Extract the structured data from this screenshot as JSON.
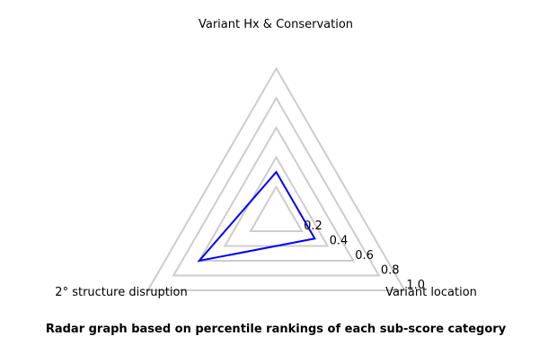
{
  "chart_data": {
    "type": "radar",
    "title": "Radar graph based on percentile rankings of each sub-score category",
    "axes": [
      "Variant Hx & Conservation",
      "Variant location",
      "2° structure disruption"
    ],
    "series": [
      {
        "values": [
          0.3,
          0.3,
          0.6
        ]
      }
    ],
    "rlim": [
      0,
      1.0
    ],
    "ticks": [
      0.2,
      0.4,
      0.6,
      0.8,
      1.0
    ],
    "tick_labels": [
      "0.2",
      "0.4",
      "0.6",
      "0.8",
      "1.0"
    ],
    "grid": true,
    "colors": {
      "series": "#0000ff",
      "grid": "#cccccc"
    }
  }
}
